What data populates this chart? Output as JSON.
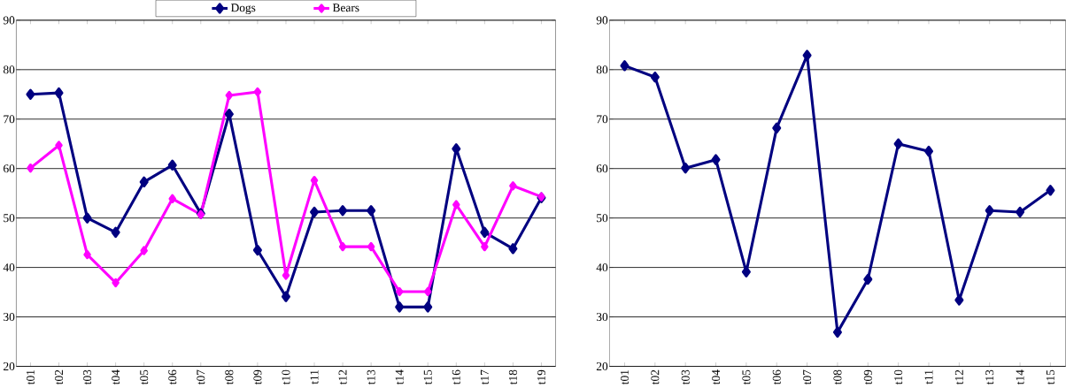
{
  "chart_data": [
    {
      "type": "line",
      "categories": [
        "t01",
        "t02",
        "t03",
        "t04",
        "t05",
        "t06",
        "t07",
        "t08",
        "t09",
        "t10",
        "t11",
        "t12",
        "t13",
        "t14",
        "t15",
        "t16",
        "t17",
        "t18",
        "t19"
      ],
      "series": [
        {
          "name": "Dogs",
          "color": "#000080",
          "values": [
            75.0,
            75.3,
            50.0,
            47.1,
            57.3,
            60.7,
            50.9,
            71.0,
            43.5,
            34.1,
            51.2,
            51.5,
            51.5,
            32.0,
            32.0,
            64.0,
            47.1,
            43.8,
            54.1
          ]
        },
        {
          "name": "Bears",
          "color": "#ff00ff",
          "values": [
            60.1,
            64.7,
            42.6,
            36.9,
            43.4,
            53.9,
            50.7,
            74.8,
            75.5,
            38.4,
            57.6,
            44.2,
            44.2,
            35.1,
            35.1,
            52.7,
            44.2,
            56.5,
            54.3
          ]
        }
      ],
      "ylim": [
        20,
        90
      ],
      "yticks": [
        20,
        30,
        40,
        50,
        60,
        70,
        80,
        90
      ],
      "grid": "y",
      "legend": "top",
      "marker": "diamond",
      "line_style": "solid"
    },
    {
      "type": "line",
      "categories": [
        "t01",
        "t02",
        "t03",
        "t04",
        "t05",
        "t06",
        "t07",
        "t08",
        "t09",
        "t10",
        "t11",
        "t12",
        "t13",
        "t14",
        "t15"
      ],
      "series": [
        {
          "color": "#000080",
          "values": [
            80.8,
            78.5,
            60.1,
            61.8,
            39.1,
            68.2,
            82.9,
            26.9,
            37.6,
            65.0,
            63.5,
            33.4,
            51.5,
            51.2,
            55.6
          ]
        }
      ],
      "ylim": [
        20,
        90
      ],
      "yticks": [
        20,
        30,
        40,
        50,
        60,
        70,
        80,
        90
      ],
      "grid": "y",
      "marker": "diamond",
      "line_style": "solid"
    }
  ]
}
